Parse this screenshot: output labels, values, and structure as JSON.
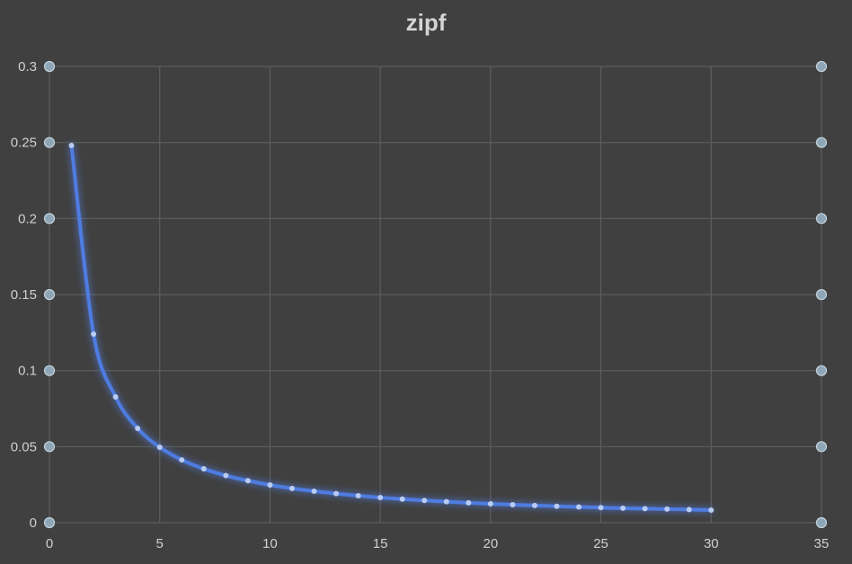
{
  "chart_data": {
    "type": "line",
    "title": "zipf",
    "xlabel": "",
    "ylabel": "",
    "xlim": [
      0,
      35
    ],
    "ylim": [
      0,
      0.3
    ],
    "x_ticks": [
      "0",
      "5",
      "10",
      "15",
      "20",
      "25",
      "30",
      "35"
    ],
    "y_ticks": [
      "0",
      "0.05",
      "0.1",
      "0.15",
      "0.2",
      "0.25",
      "0.3"
    ],
    "grid": true,
    "series": [
      {
        "color": "#4f7be0",
        "smooth": true,
        "x": [
          1,
          2,
          3,
          4,
          5,
          6,
          7,
          8,
          9,
          10,
          11,
          12,
          13,
          14,
          15,
          16,
          17,
          18,
          19,
          20,
          21,
          22,
          23,
          24,
          25,
          26,
          27,
          28,
          29,
          30
        ],
        "values": [
          0.248,
          0.124,
          0.0827,
          0.062,
          0.0496,
          0.0413,
          0.0354,
          0.031,
          0.0276,
          0.0248,
          0.0225,
          0.0207,
          0.0191,
          0.0177,
          0.0165,
          0.0155,
          0.0146,
          0.0138,
          0.0131,
          0.0124,
          0.0118,
          0.0113,
          0.0108,
          0.0103,
          0.0099,
          0.0095,
          0.0092,
          0.0089,
          0.0086,
          0.0083
        ]
      }
    ]
  }
}
